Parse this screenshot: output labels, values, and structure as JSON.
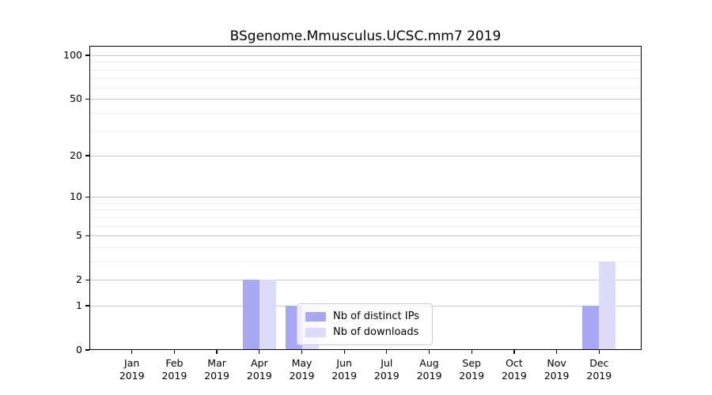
{
  "title": "BSgenome.Mmusculus.UCSC.mm7 2019",
  "chart_data": {
    "type": "bar",
    "title": "BSgenome.Mmusculus.UCSC.mm7 2019",
    "xlabel": "",
    "ylabel": "",
    "categories": [
      "Jan",
      "Feb",
      "Mar",
      "Apr",
      "May",
      "Jun",
      "Jul",
      "Aug",
      "Sep",
      "Oct",
      "Nov",
      "Dec"
    ],
    "x_year_label": "2019",
    "series": [
      {
        "name": "Nb of distinct IPs",
        "color": "#a7a7f2",
        "values": [
          0,
          0,
          0,
          2,
          1,
          0,
          0,
          0,
          0,
          0,
          0,
          1
        ]
      },
      {
        "name": "Nb of downloads",
        "color": "#dcdcf8",
        "values": [
          0,
          0,
          0,
          2,
          1,
          0,
          0,
          0,
          0,
          0,
          0,
          3
        ]
      }
    ],
    "yscale": "log1p",
    "yticks": [
      0,
      1,
      2,
      5,
      10,
      20,
      50,
      100
    ],
    "minor_gridlines": [
      3,
      4,
      6,
      7,
      8,
      9,
      30,
      40,
      60,
      70,
      80,
      90
    ],
    "ylim": [
      0,
      116
    ],
    "grid": true,
    "legend_position": "lower center-right inside plot"
  },
  "legend": {
    "items": [
      {
        "label": "Nb of distinct IPs",
        "color": "#a7a7f2"
      },
      {
        "label": "Nb of downloads",
        "color": "#dcdcf8"
      }
    ]
  },
  "colors": {
    "background": "#ffffff",
    "spine": "#000000",
    "grid_major": "#c9c9c9",
    "grid_minor": "#ededed",
    "bar_distinct_ips": "#a7a7f2",
    "bar_downloads": "#dcdcf8"
  }
}
